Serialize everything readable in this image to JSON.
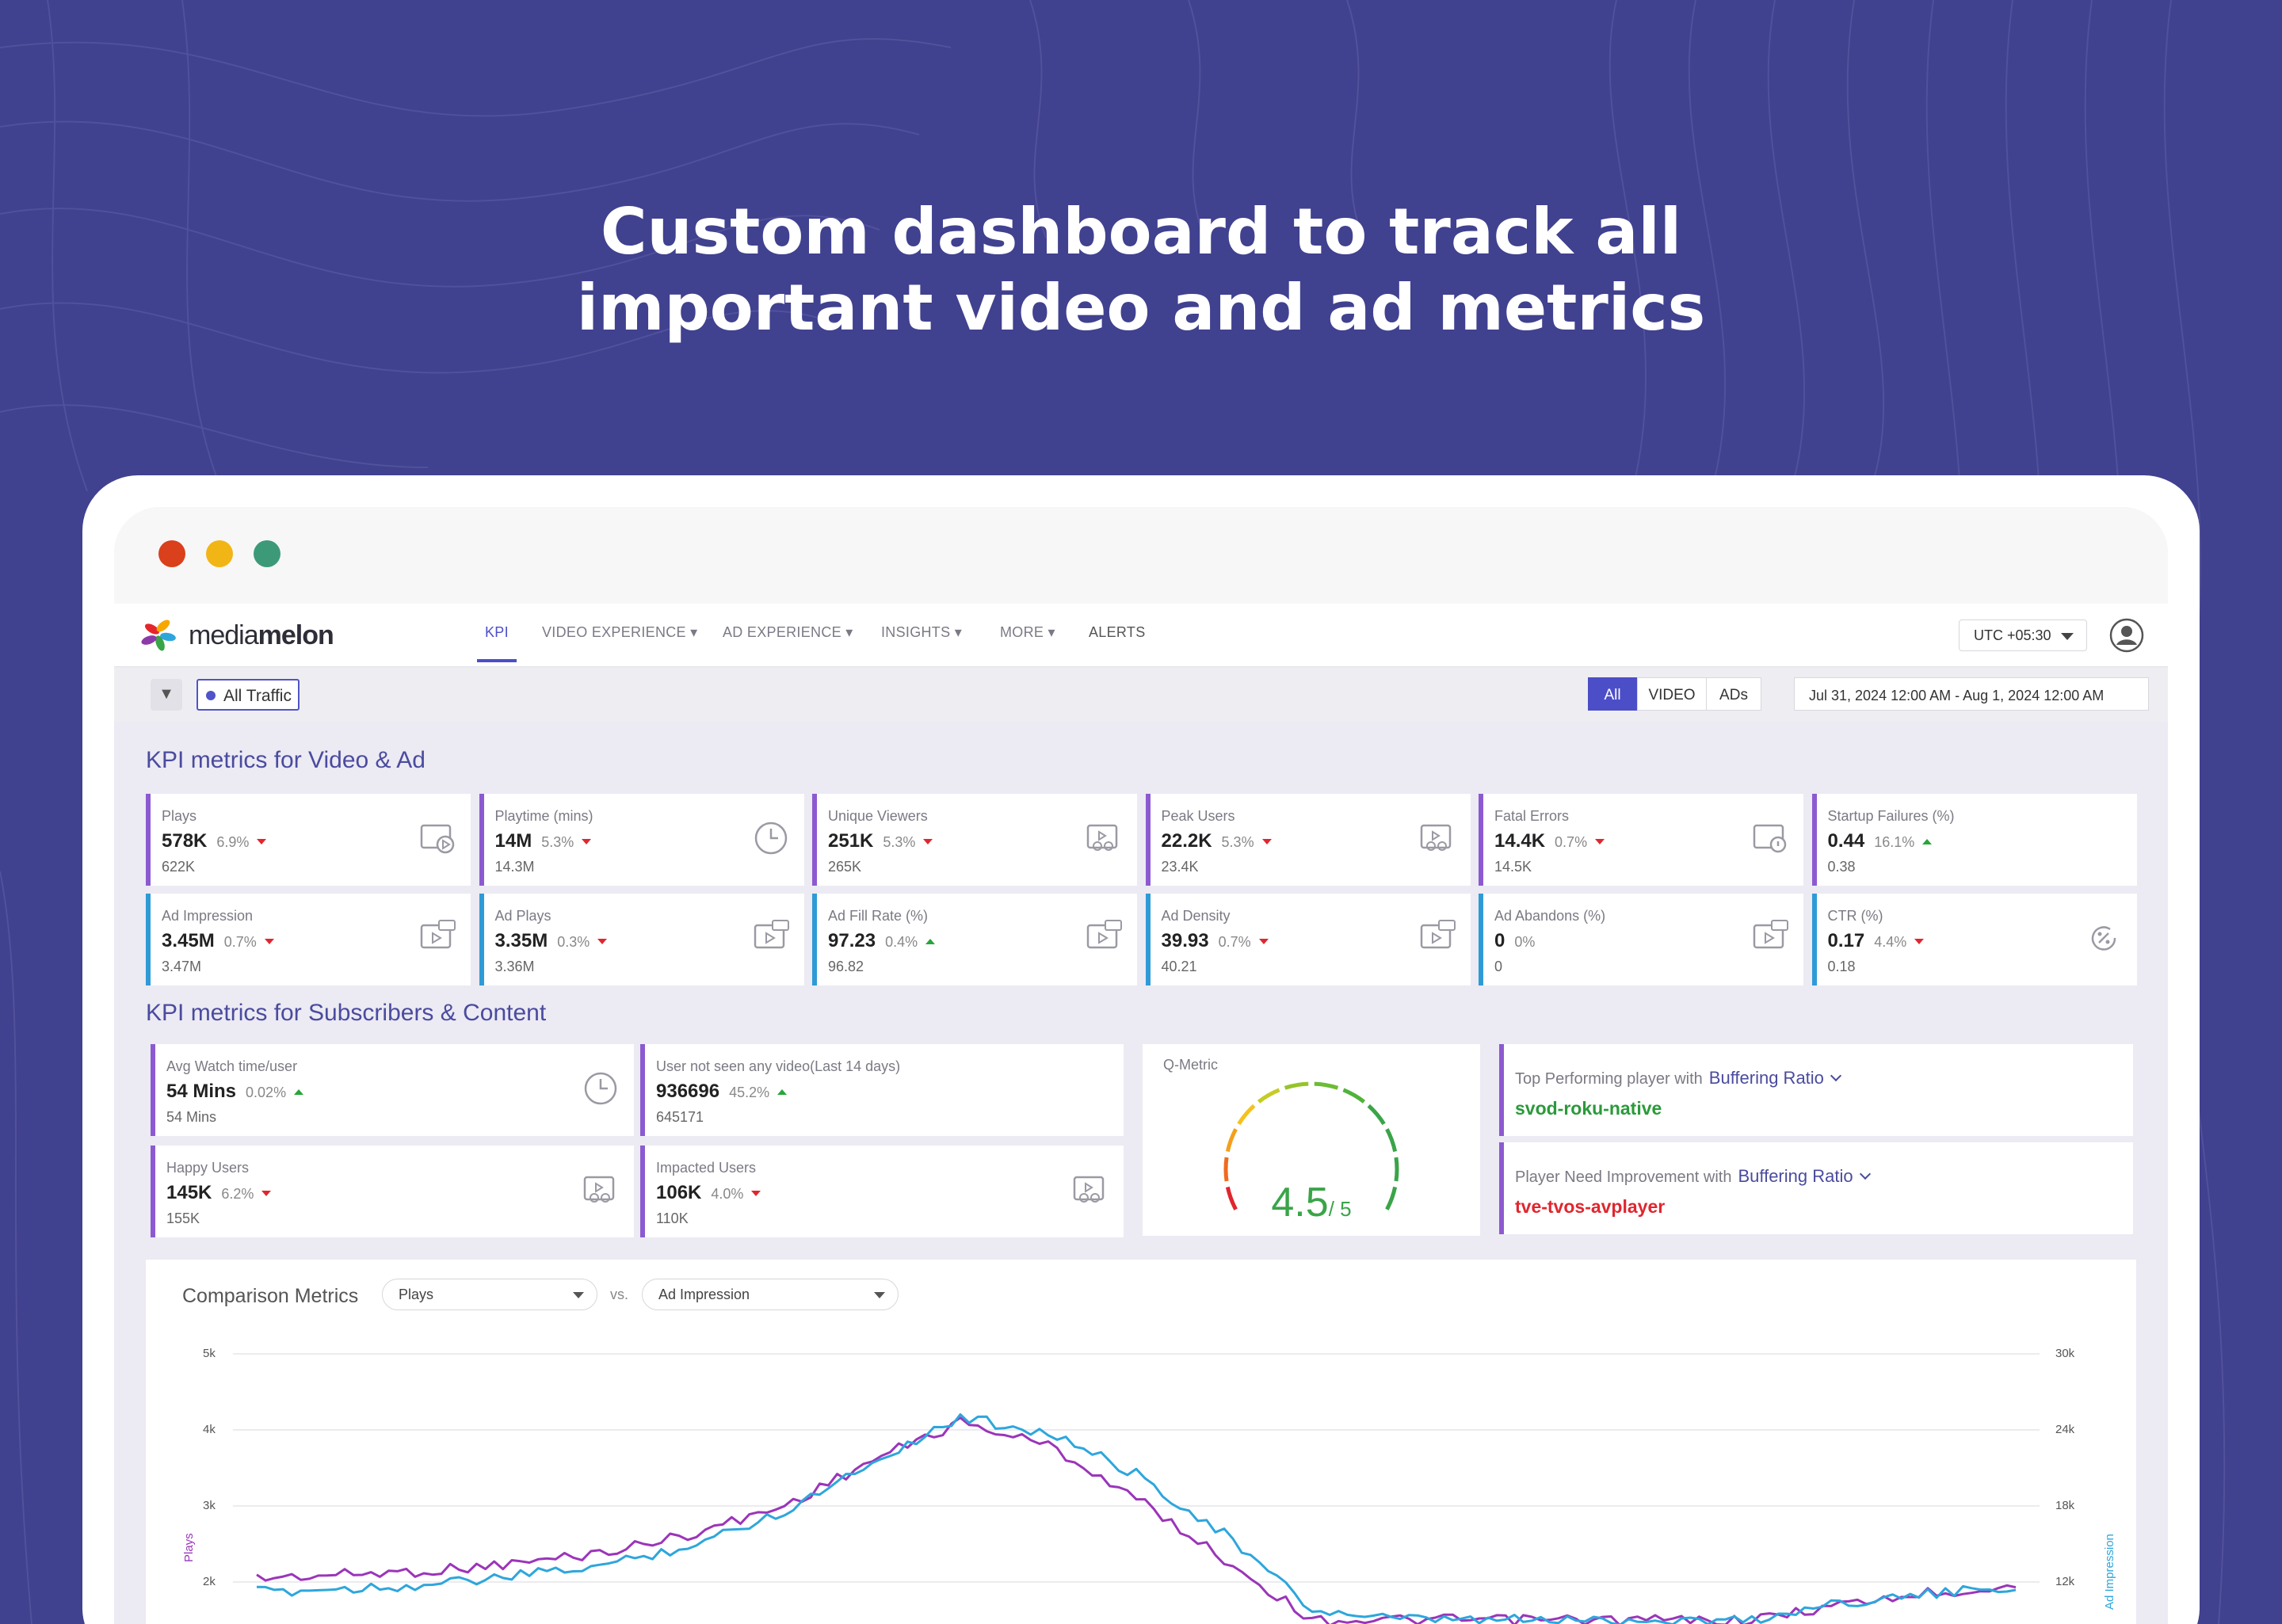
{
  "hero": {
    "line1": "Custom dashboard to track all",
    "line2": "important video and ad metrics"
  },
  "colors": {
    "background": "#40418f",
    "accent": "#4c4ec8",
    "video_border": "#8c5ad0",
    "ad_border": "#2e9bd6",
    "down": "#e0262e",
    "up": "#27a63a",
    "series1": "#9b35b9",
    "series2": "#2ea6dc"
  },
  "window_controls": [
    "close",
    "minimize",
    "maximize"
  ],
  "brand": {
    "name_light": "media",
    "name_bold": "melon"
  },
  "nav": {
    "items": [
      {
        "label": "KPI",
        "active": true
      },
      {
        "label": "VIDEO EXPERIENCE",
        "dropdown": true
      },
      {
        "label": "AD EXPERIENCE",
        "dropdown": true
      },
      {
        "label": "INSIGHTS",
        "dropdown": true
      },
      {
        "label": "MORE",
        "dropdown": true
      },
      {
        "label": "ALERTS"
      }
    ],
    "timezone": "UTC +05:30"
  },
  "filters": {
    "traffic": "All Traffic",
    "segments": [
      "All",
      "VIDEO",
      "ADs"
    ],
    "active_segment": "All",
    "date_range": "Jul 31, 2024 12:00 AM - Aug 1, 2024 12:00 AM"
  },
  "section1": {
    "title": "KPI metrics for Video & Ad"
  },
  "video_cards": [
    {
      "label": "Plays",
      "value": "578K",
      "pct": "6.9%",
      "trend": "down",
      "prev": "622K",
      "icon": "play-screen-icon"
    },
    {
      "label": "Playtime (mins)",
      "value": "14M",
      "pct": "5.3%",
      "trend": "down",
      "prev": "14.3M",
      "icon": "clock-icon"
    },
    {
      "label": "Unique Viewers",
      "value": "251K",
      "pct": "5.3%",
      "trend": "down",
      "prev": "265K",
      "icon": "viewers-icon"
    },
    {
      "label": "Peak Users",
      "value": "22.2K",
      "pct": "5.3%",
      "trend": "down",
      "prev": "23.4K",
      "icon": "peak-users-icon"
    },
    {
      "label": "Fatal Errors",
      "value": "14.4K",
      "pct": "0.7%",
      "trend": "down",
      "prev": "14.5K",
      "icon": "error-screen-icon"
    },
    {
      "label": "Startup Failures (%)",
      "value": "0.44",
      "pct": "16.1%",
      "trend": "up",
      "prev": "0.38",
      "icon": ""
    }
  ],
  "ad_cards": [
    {
      "label": "Ad Impression",
      "value": "3.45M",
      "pct": "0.7%",
      "trend": "down",
      "prev": "3.47M",
      "icon": "ad-impression-icon"
    },
    {
      "label": "Ad Plays",
      "value": "3.35M",
      "pct": "0.3%",
      "trend": "down",
      "prev": "3.36M",
      "icon": "ad-play-icon"
    },
    {
      "label": "Ad Fill Rate (%)",
      "value": "97.23",
      "pct": "0.4%",
      "trend": "up",
      "prev": "96.82",
      "icon": "ad-fill-icon"
    },
    {
      "label": "Ad Density",
      "value": "39.93",
      "pct": "0.7%",
      "trend": "down",
      "prev": "40.21",
      "icon": "ad-density-icon"
    },
    {
      "label": "Ad Abandons (%)",
      "value": "0",
      "pct": "0%",
      "trend": "none",
      "prev": "0",
      "icon": "ad-abandon-icon"
    },
    {
      "label": "CTR (%)",
      "value": "0.17",
      "pct": "4.4%",
      "trend": "down",
      "prev": "0.18",
      "icon": "ctr-icon"
    }
  ],
  "section2": {
    "title": "KPI metrics for Subscribers & Content"
  },
  "sub_cards": [
    {
      "label": "Avg Watch time/user",
      "value": "54 Mins",
      "pct": "0.02%",
      "trend": "up",
      "prev": "54 Mins",
      "icon": "clock-icon"
    },
    {
      "label": "User not seen any video(Last 14 days)",
      "value": "936696",
      "pct": "45.2%",
      "trend": "up",
      "prev": "645171",
      "icon": ""
    },
    {
      "label": "Happy Users",
      "value": "145K",
      "pct": "6.2%",
      "trend": "down",
      "prev": "155K",
      "icon": "happy-users-icon"
    },
    {
      "label": "Impacted Users",
      "value": "106K",
      "pct": "4.0%",
      "trend": "down",
      "prev": "110K",
      "icon": "impacted-users-icon"
    }
  ],
  "qmetric": {
    "label": "Q-Metric",
    "value": "4.5",
    "denominator": "/ 5",
    "score_fraction": 0.9
  },
  "players": [
    {
      "label": "Top Performing player with",
      "metric": "Buffering Ratio",
      "value": "svod-roku-native",
      "color": "#2a9a3a"
    },
    {
      "label": "Player Need Improvement with",
      "metric": "Buffering Ratio",
      "value": "tve-tvos-avplayer",
      "color": "#e0262e"
    }
  ],
  "comparison": {
    "title": "Comparison Metrics",
    "select1": "Plays",
    "vs": "vs.",
    "select2": "Ad Impression"
  },
  "chart_data": {
    "type": "line",
    "ylabel": "Plays",
    "y2label": "Ad Impression",
    "yticks": [
      "5k",
      "4k",
      "3k",
      "2k"
    ],
    "y2ticks": [
      "30k",
      "24k",
      "18k",
      "12k"
    ],
    "ylim": [
      1500,
      5000
    ],
    "y2lim": [
      9000,
      30000
    ],
    "x": [
      0,
      0.05,
      0.1,
      0.15,
      0.2,
      0.25,
      0.3,
      0.35,
      0.4,
      0.45,
      0.5,
      0.55,
      0.6,
      0.65,
      0.7,
      0.75,
      0.8,
      0.85,
      0.9,
      0.95,
      1
    ],
    "series": [
      {
        "name": "Plays",
        "axis": "left",
        "values": [
          2050,
          2100,
          2150,
          2250,
          2400,
          2650,
          3000,
          3600,
          4100,
          3800,
          3100,
          2300,
          1500,
          1500,
          1500,
          1500,
          1500,
          1500,
          1700,
          1850,
          1950
        ]
      },
      {
        "name": "Ad Impression",
        "axis": "right",
        "values": [
          11200,
          11500,
          11800,
          12500,
          13400,
          15000,
          17600,
          21500,
          25000,
          23800,
          20500,
          15800,
          9800,
          9000,
          9000,
          9000,
          9000,
          9000,
          10400,
          11000,
          11600
        ]
      }
    ],
    "grid": true,
    "legend": "none"
  }
}
